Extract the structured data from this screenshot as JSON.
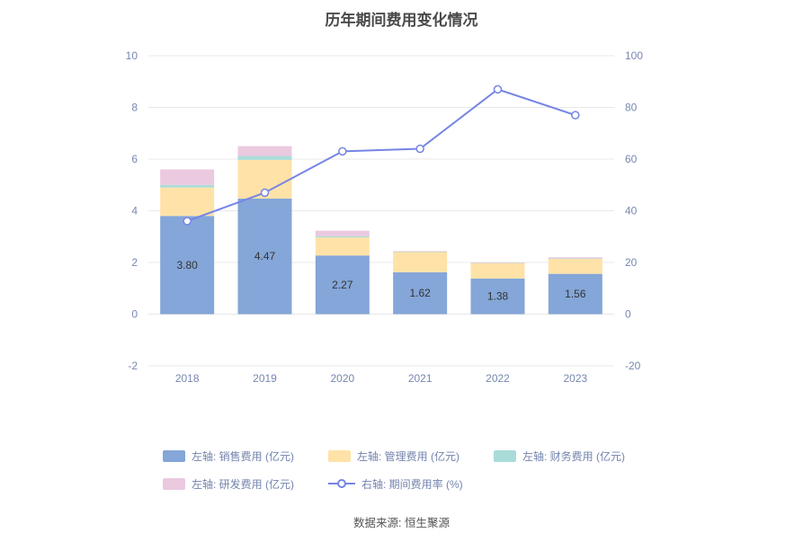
{
  "title": "历年期间费用变化情况",
  "source": "数据来源: 恒生聚源",
  "chart_data": {
    "type": "bar",
    "subtype": "stacked-bar-with-line",
    "categories": [
      "2018",
      "2019",
      "2020",
      "2021",
      "2022",
      "2023"
    ],
    "stack_series": [
      {
        "name": "左轴: 销售费用 (亿元)",
        "color": "#84a6d8",
        "values": [
          3.8,
          4.47,
          2.27,
          1.62,
          1.38,
          1.56
        ]
      },
      {
        "name": "左轴: 管理费用 (亿元)",
        "color": "#ffe2a8",
        "values": [
          1.1,
          1.5,
          0.7,
          0.78,
          0.6,
          0.58
        ]
      },
      {
        "name": "左轴: 财务费用 (亿元)",
        "color": "#a9dcd8",
        "values": [
          0.1,
          0.15,
          0.05,
          0.02,
          0.01,
          0.02
        ]
      },
      {
        "name": "左轴: 研发费用 (亿元)",
        "color": "#ebc9df",
        "values": [
          0.6,
          0.38,
          0.21,
          0.02,
          0.01,
          0.04
        ]
      }
    ],
    "line_series": {
      "name": "右轴: 期间费用率 (%)",
      "color": "#7585e4",
      "values": [
        36,
        47,
        63,
        64,
        87,
        77
      ]
    },
    "bar_labels": [
      "3.80",
      "4.47",
      "2.27",
      "1.62",
      "1.38",
      "1.56"
    ],
    "left_axis": {
      "min": -2,
      "max": 10,
      "ticks": [
        10,
        8,
        6,
        4,
        2,
        0,
        -2
      ]
    },
    "right_axis": {
      "min": -20,
      "max": 100,
      "ticks": [
        100,
        80,
        60,
        40,
        20,
        0,
        -20
      ]
    },
    "grid": true,
    "legend_position": "bottom",
    "colors": {
      "axis_text": "#7787b0",
      "bar_label_text": "#333333",
      "gridline": "#e8e8e8"
    }
  }
}
